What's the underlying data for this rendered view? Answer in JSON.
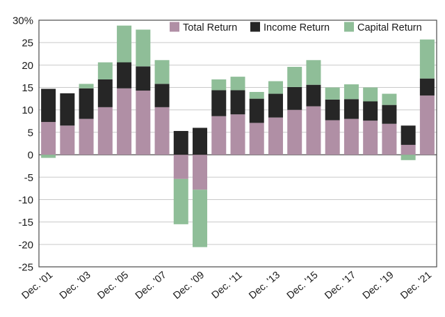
{
  "chart_data": {
    "type": "bar",
    "stacking": "stacked",
    "title": "",
    "xlabel": "",
    "ylabel": "",
    "ylim": [
      -25,
      30
    ],
    "y_ticks": [
      30,
      25,
      20,
      15,
      10,
      5,
      0,
      -5,
      -10,
      -15,
      -20,
      -25
    ],
    "y_tick_labels": [
      "30%",
      "25",
      "20",
      "15",
      "10",
      "5",
      "0",
      "-5",
      "-10",
      "-15",
      "-20",
      "-25"
    ],
    "grid": true,
    "legend_position": "top-right",
    "years": [
      "2001",
      "2002",
      "2003",
      "2004",
      "2005",
      "2006",
      "2007",
      "2008",
      "2009",
      "2010",
      "2011",
      "2012",
      "2013",
      "2014",
      "2015",
      "2016",
      "2017",
      "2018",
      "2019",
      "2020",
      "2021"
    ],
    "x_tick_labels": [
      "Dec. '01",
      "Dec. '03",
      "Dec. '05",
      "Dec. '07",
      "Dec. '09",
      "Dec. '11",
      "Dec. '13",
      "Dec. '15",
      "Dec. '17",
      "Dec. '19",
      "Dec. '21"
    ],
    "series": [
      {
        "name": "Total Return",
        "color": "#b08fa5",
        "values": [
          7.3,
          6.5,
          8.0,
          10.6,
          14.8,
          14.3,
          10.6,
          -5.4,
          -7.8,
          8.6,
          9.0,
          7.1,
          8.3,
          10.0,
          10.8,
          7.7,
          8.0,
          7.6,
          6.9,
          2.2,
          13.2
        ]
      },
      {
        "name": "Income Return",
        "color": "#262626",
        "values": [
          7.4,
          7.2,
          6.8,
          6.2,
          5.8,
          5.4,
          5.2,
          5.3,
          6.0,
          5.8,
          5.4,
          5.4,
          5.3,
          5.1,
          4.8,
          4.6,
          4.4,
          4.3,
          4.2,
          4.3,
          3.8
        ]
      },
      {
        "name": "Capital Return",
        "color": "#8fbe98",
        "values": [
          -0.7,
          0,
          1.0,
          3.8,
          8.2,
          8.2,
          5.3,
          -10.1,
          -12.8,
          2.4,
          3.0,
          1.5,
          2.8,
          4.5,
          5.5,
          2.7,
          3.3,
          3.1,
          2.5,
          -1.2,
          8.7
        ]
      }
    ]
  }
}
